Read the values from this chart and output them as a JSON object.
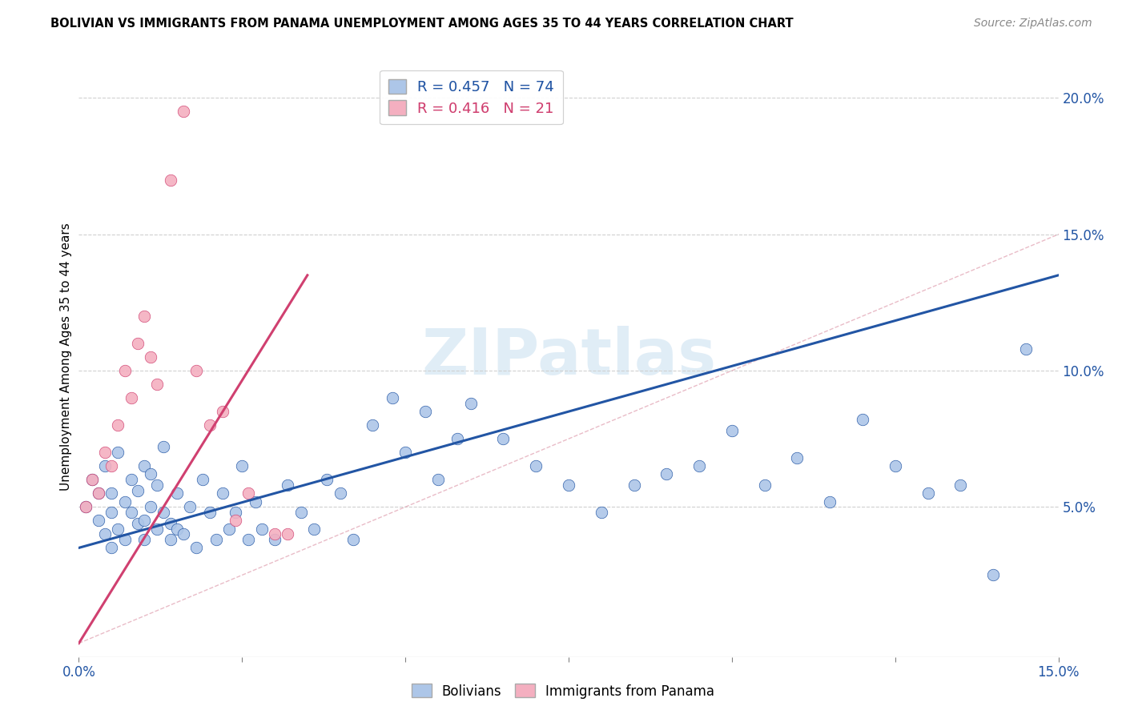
{
  "title": "BOLIVIAN VS IMMIGRANTS FROM PANAMA UNEMPLOYMENT AMONG AGES 35 TO 44 YEARS CORRELATION CHART",
  "source": "Source: ZipAtlas.com",
  "xlim": [
    0.0,
    0.15
  ],
  "ylim": [
    -0.005,
    0.215
  ],
  "ylabel": "Unemployment Among Ages 35 to 44 years",
  "legend_bolivians": "Bolivians",
  "legend_panama": "Immigrants from Panama",
  "R_bolivians": 0.457,
  "N_bolivians": 74,
  "R_panama": 0.416,
  "N_panama": 21,
  "color_bolivians": "#adc6e8",
  "color_panama": "#f4afc0",
  "line_color_bolivians": "#2255a4",
  "line_color_panama": "#d04070",
  "watermark": "ZIPatlas",
  "blue_line_x0": 0.0,
  "blue_line_y0": 0.035,
  "blue_line_x1": 0.15,
  "blue_line_y1": 0.135,
  "pink_line_x0": 0.0,
  "pink_line_y0": 0.0,
  "pink_line_x1": 0.035,
  "pink_line_y1": 0.135,
  "bolivians_x": [
    0.001,
    0.002,
    0.003,
    0.003,
    0.004,
    0.004,
    0.005,
    0.005,
    0.005,
    0.006,
    0.006,
    0.007,
    0.007,
    0.008,
    0.008,
    0.009,
    0.009,
    0.01,
    0.01,
    0.01,
    0.011,
    0.011,
    0.012,
    0.012,
    0.013,
    0.013,
    0.014,
    0.014,
    0.015,
    0.015,
    0.016,
    0.017,
    0.018,
    0.019,
    0.02,
    0.021,
    0.022,
    0.023,
    0.024,
    0.025,
    0.026,
    0.027,
    0.028,
    0.03,
    0.032,
    0.034,
    0.036,
    0.038,
    0.04,
    0.042,
    0.045,
    0.048,
    0.05,
    0.053,
    0.055,
    0.058,
    0.06,
    0.065,
    0.07,
    0.075,
    0.08,
    0.085,
    0.09,
    0.095,
    0.1,
    0.105,
    0.11,
    0.115,
    0.12,
    0.125,
    0.13,
    0.135,
    0.14,
    0.145
  ],
  "bolivians_y": [
    0.05,
    0.06,
    0.045,
    0.055,
    0.04,
    0.065,
    0.048,
    0.055,
    0.035,
    0.07,
    0.042,
    0.052,
    0.038,
    0.048,
    0.06,
    0.044,
    0.056,
    0.045,
    0.065,
    0.038,
    0.05,
    0.062,
    0.042,
    0.058,
    0.048,
    0.072,
    0.044,
    0.038,
    0.055,
    0.042,
    0.04,
    0.05,
    0.035,
    0.06,
    0.048,
    0.038,
    0.055,
    0.042,
    0.048,
    0.065,
    0.038,
    0.052,
    0.042,
    0.038,
    0.058,
    0.048,
    0.042,
    0.06,
    0.055,
    0.038,
    0.08,
    0.09,
    0.07,
    0.085,
    0.06,
    0.075,
    0.088,
    0.075,
    0.065,
    0.058,
    0.048,
    0.058,
    0.062,
    0.065,
    0.078,
    0.058,
    0.068,
    0.052,
    0.082,
    0.065,
    0.055,
    0.058,
    0.025,
    0.108
  ],
  "panama_x": [
    0.001,
    0.002,
    0.003,
    0.004,
    0.005,
    0.006,
    0.007,
    0.008,
    0.009,
    0.01,
    0.011,
    0.012,
    0.014,
    0.016,
    0.018,
    0.02,
    0.022,
    0.024,
    0.026,
    0.03,
    0.032
  ],
  "panama_y": [
    0.05,
    0.06,
    0.055,
    0.07,
    0.065,
    0.08,
    0.1,
    0.09,
    0.11,
    0.12,
    0.105,
    0.095,
    0.17,
    0.195,
    0.1,
    0.08,
    0.085,
    0.045,
    0.055,
    0.04,
    0.04
  ]
}
